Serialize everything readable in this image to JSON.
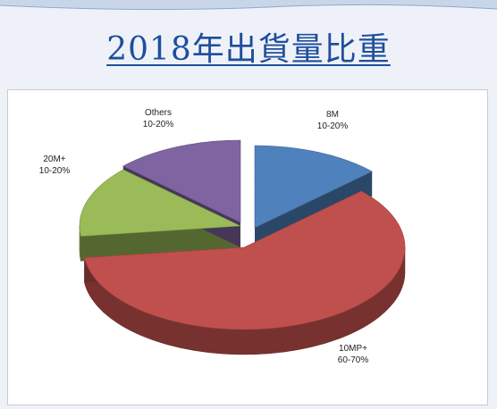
{
  "slide": {
    "title": "2018年出貨量比重"
  },
  "chart_data": {
    "type": "pie",
    "style": "3d-exploded",
    "title": "",
    "slices": [
      {
        "label": "8M",
        "range": "10-20%",
        "value": 13,
        "color": "#4f81bd"
      },
      {
        "label": "10MP+",
        "range": "60-70%",
        "value": 60,
        "color": "#c0504d"
      },
      {
        "label": "20M+",
        "range": "10-20%",
        "value": 14,
        "color": "#9bbb59"
      },
      {
        "label": "Others",
        "range": "10-20%",
        "value": 13,
        "color": "#8064a2"
      }
    ],
    "legend": "none"
  }
}
